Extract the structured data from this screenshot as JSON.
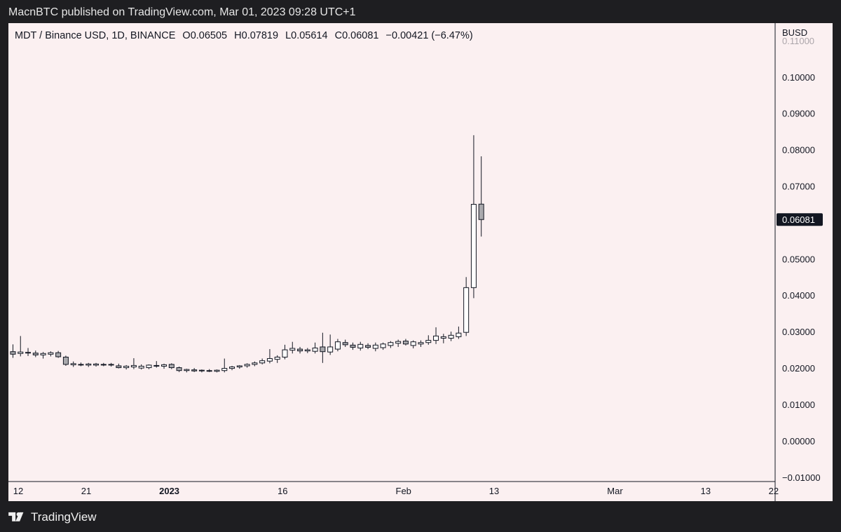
{
  "header": {
    "publisher": "MacnBTC published on TradingView.com, Mar 01, 2023 09:28 UTC+1"
  },
  "legend": {
    "symbol": "MDT / Binance USD, 1D, BINANCE",
    "open": "O0.06505",
    "high": "H0.07819",
    "low": "L0.05614",
    "close": "C0.06081",
    "change": "−0.00421 (−6.47%)"
  },
  "footer": {
    "brand": "TradingView"
  },
  "colors": {
    "background": "#fbf0f1",
    "frame": "#1e1e21",
    "up_body": "#ffffff",
    "down_body": "#a9a9ad",
    "wick": "#131722",
    "price_label_bg": "#131722"
  },
  "chart_data": {
    "type": "candlestick",
    "title": "MDT / Binance USD, 1D, BINANCE",
    "currency_label": "BUSD",
    "y_axis": {
      "min": -0.0112,
      "max": 0.1148,
      "ticks": [
        0.1,
        0.09,
        0.08,
        0.07,
        0.06,
        0.05,
        0.04,
        0.03,
        0.02,
        0.01,
        0.0,
        -0.01
      ],
      "tick_labels": [
        "0.10000",
        "0.09000",
        "0.08000",
        "0.07000",
        "0.06081",
        "0.05000",
        "0.04000",
        "0.03000",
        "0.02000",
        "0.01000",
        "0.00000",
        "−0.01000"
      ],
      "partial_top_label": "0.11000",
      "last_price": 0.06081,
      "last_price_label": "0.06081"
    },
    "x_axis": {
      "labels": [
        {
          "text": "12",
          "day": 0.7,
          "bold": false
        },
        {
          "text": "21",
          "day": 9.7,
          "bold": false
        },
        {
          "text": "2023",
          "day": 20.7,
          "bold": true
        },
        {
          "text": "16",
          "day": 35.7,
          "bold": false
        },
        {
          "text": "Feb",
          "day": 51.7,
          "bold": false
        },
        {
          "text": "13",
          "day": 63.7,
          "bold": false
        },
        {
          "text": "Mar",
          "day": 79.7,
          "bold": false
        },
        {
          "text": "13",
          "day": 91.7,
          "bold": false
        },
        {
          "text": "22",
          "day": 100.7,
          "bold": false
        }
      ],
      "day_min": -0.6,
      "day_max": 100.9
    },
    "candles": [
      {
        "o": 0.0245,
        "h": 0.0265,
        "l": 0.0228,
        "c": 0.0238
      },
      {
        "o": 0.024,
        "h": 0.0288,
        "l": 0.0232,
        "c": 0.0244
      },
      {
        "o": 0.0243,
        "h": 0.0255,
        "l": 0.0233,
        "c": 0.0242
      },
      {
        "o": 0.0241,
        "h": 0.0248,
        "l": 0.023,
        "c": 0.0236
      },
      {
        "o": 0.0236,
        "h": 0.0244,
        "l": 0.0226,
        "c": 0.024
      },
      {
        "o": 0.0238,
        "h": 0.0246,
        "l": 0.0232,
        "c": 0.0242
      },
      {
        "o": 0.0242,
        "h": 0.0247,
        "l": 0.0228,
        "c": 0.0231
      },
      {
        "o": 0.023,
        "h": 0.0234,
        "l": 0.0206,
        "c": 0.021
      },
      {
        "o": 0.0209,
        "h": 0.0218,
        "l": 0.0203,
        "c": 0.0212
      },
      {
        "o": 0.021,
        "h": 0.0215,
        "l": 0.0205,
        "c": 0.0209
      },
      {
        "o": 0.0208,
        "h": 0.0214,
        "l": 0.0203,
        "c": 0.0211
      },
      {
        "o": 0.0208,
        "h": 0.0214,
        "l": 0.0204,
        "c": 0.0211
      },
      {
        "o": 0.021,
        "h": 0.0214,
        "l": 0.0205,
        "c": 0.0209
      },
      {
        "o": 0.0208,
        "h": 0.0214,
        "l": 0.0204,
        "c": 0.021
      },
      {
        "o": 0.0206,
        "h": 0.0212,
        "l": 0.0199,
        "c": 0.0201
      },
      {
        "o": 0.0201,
        "h": 0.0208,
        "l": 0.0196,
        "c": 0.0205
      },
      {
        "o": 0.0203,
        "h": 0.0227,
        "l": 0.0197,
        "c": 0.0207
      },
      {
        "o": 0.02,
        "h": 0.021,
        "l": 0.0196,
        "c": 0.0205
      },
      {
        "o": 0.0201,
        "h": 0.021,
        "l": 0.0197,
        "c": 0.0208
      },
      {
        "o": 0.0206,
        "h": 0.0219,
        "l": 0.0201,
        "c": 0.0207
      },
      {
        "o": 0.0205,
        "h": 0.0212,
        "l": 0.0198,
        "c": 0.0209
      },
      {
        "o": 0.021,
        "h": 0.0213,
        "l": 0.0197,
        "c": 0.0201
      },
      {
        "o": 0.0201,
        "h": 0.0204,
        "l": 0.0189,
        "c": 0.0193
      },
      {
        "o": 0.0193,
        "h": 0.0198,
        "l": 0.0188,
        "c": 0.0196
      },
      {
        "o": 0.0195,
        "h": 0.02,
        "l": 0.0189,
        "c": 0.0192
      },
      {
        "o": 0.0192,
        "h": 0.0196,
        "l": 0.0188,
        "c": 0.0194
      },
      {
        "o": 0.0193,
        "h": 0.0197,
        "l": 0.0189,
        "c": 0.0191
      },
      {
        "o": 0.0191,
        "h": 0.0196,
        "l": 0.0188,
        "c": 0.0194
      },
      {
        "o": 0.0193,
        "h": 0.0226,
        "l": 0.0188,
        "c": 0.0199
      },
      {
        "o": 0.0199,
        "h": 0.0206,
        "l": 0.0194,
        "c": 0.0203
      },
      {
        "o": 0.0203,
        "h": 0.0208,
        "l": 0.0198,
        "c": 0.0206
      },
      {
        "o": 0.0206,
        "h": 0.0213,
        "l": 0.0201,
        "c": 0.021
      },
      {
        "o": 0.021,
        "h": 0.0218,
        "l": 0.0205,
        "c": 0.0214
      },
      {
        "o": 0.0214,
        "h": 0.0226,
        "l": 0.021,
        "c": 0.022
      },
      {
        "o": 0.0219,
        "h": 0.0252,
        "l": 0.0213,
        "c": 0.0226
      },
      {
        "o": 0.0224,
        "h": 0.0235,
        "l": 0.0214,
        "c": 0.023
      },
      {
        "o": 0.023,
        "h": 0.0264,
        "l": 0.0224,
        "c": 0.025
      },
      {
        "o": 0.0249,
        "h": 0.0272,
        "l": 0.024,
        "c": 0.0254
      },
      {
        "o": 0.0252,
        "h": 0.0258,
        "l": 0.024,
        "c": 0.0247
      },
      {
        "o": 0.0247,
        "h": 0.0255,
        "l": 0.0241,
        "c": 0.025
      },
      {
        "o": 0.0246,
        "h": 0.027,
        "l": 0.024,
        "c": 0.0255
      },
      {
        "o": 0.0258,
        "h": 0.0297,
        "l": 0.0214,
        "c": 0.0245
      },
      {
        "o": 0.0244,
        "h": 0.0292,
        "l": 0.0236,
        "c": 0.0258
      },
      {
        "o": 0.0252,
        "h": 0.028,
        "l": 0.0246,
        "c": 0.0272
      },
      {
        "o": 0.027,
        "h": 0.0278,
        "l": 0.0258,
        "c": 0.0264
      },
      {
        "o": 0.0263,
        "h": 0.027,
        "l": 0.025,
        "c": 0.0257
      },
      {
        "o": 0.0255,
        "h": 0.0272,
        "l": 0.0248,
        "c": 0.0265
      },
      {
        "o": 0.0262,
        "h": 0.0268,
        "l": 0.0252,
        "c": 0.0257
      },
      {
        "o": 0.0254,
        "h": 0.027,
        "l": 0.0246,
        "c": 0.0263
      },
      {
        "o": 0.0256,
        "h": 0.027,
        "l": 0.025,
        "c": 0.0266
      },
      {
        "o": 0.0262,
        "h": 0.0274,
        "l": 0.0255,
        "c": 0.027
      },
      {
        "o": 0.0268,
        "h": 0.0278,
        "l": 0.0258,
        "c": 0.0273
      },
      {
        "o": 0.0274,
        "h": 0.028,
        "l": 0.0262,
        "c": 0.0266
      },
      {
        "o": 0.0262,
        "h": 0.0276,
        "l": 0.0254,
        "c": 0.0272
      },
      {
        "o": 0.0266,
        "h": 0.0276,
        "l": 0.0258,
        "c": 0.027
      },
      {
        "o": 0.027,
        "h": 0.029,
        "l": 0.0264,
        "c": 0.0276
      },
      {
        "o": 0.0276,
        "h": 0.0312,
        "l": 0.0266,
        "c": 0.0288
      },
      {
        "o": 0.0282,
        "h": 0.0294,
        "l": 0.0268,
        "c": 0.0286
      },
      {
        "o": 0.0282,
        "h": 0.03,
        "l": 0.0274,
        "c": 0.029
      },
      {
        "o": 0.0286,
        "h": 0.0314,
        "l": 0.028,
        "c": 0.0296
      },
      {
        "o": 0.0298,
        "h": 0.045,
        "l": 0.0288,
        "c": 0.0421
      },
      {
        "o": 0.0421,
        "h": 0.084,
        "l": 0.0392,
        "c": 0.065
      },
      {
        "o": 0.06505,
        "h": 0.07819,
        "l": 0.05614,
        "c": 0.06081
      }
    ]
  }
}
